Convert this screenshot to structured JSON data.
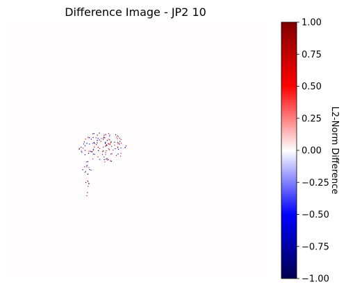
{
  "chart_data": {
    "type": "heatmap",
    "title": "Difference Image - JP2 10",
    "axes_visible": false,
    "image_background_value": 0.0,
    "colormap": "seismic",
    "colorbar": {
      "label": "L2-Norm Difference",
      "vmin": -1.0,
      "vmax": 1.0,
      "ticks": [
        1.0,
        0.75,
        0.5,
        0.25,
        0.0,
        -0.25,
        -0.5,
        -0.75,
        -1.0
      ],
      "tick_labels": [
        "1.00",
        "0.75",
        "0.50",
        "0.25",
        "0.00",
        "−0.25",
        "−0.50",
        "−0.75",
        "−1.00"
      ],
      "placement": "right"
    },
    "colors": {
      "min": "#00004d",
      "low": "#0000ff",
      "mid": "#ffffff",
      "high": "#ff0000",
      "max": "#800000",
      "background_tint": "#fffcfd"
    }
  }
}
